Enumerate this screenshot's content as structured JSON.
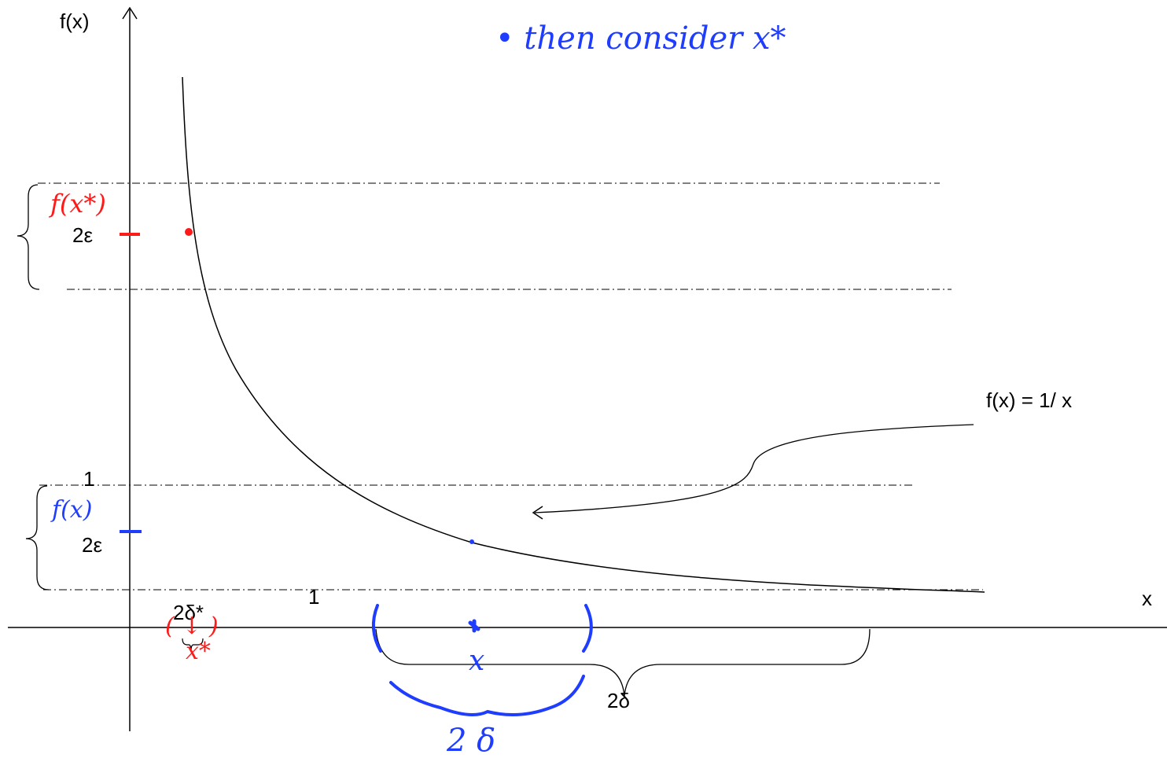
{
  "labels": {
    "y_axis": "f(x)",
    "x_axis": "x",
    "func": "f(x) = 1/ x",
    "one_y": "1",
    "one_x": "1",
    "two_eps_top": "2ε",
    "two_eps_bottom": "2ε",
    "two_delta_star": "2δ*",
    "two_delta_big": "2δ"
  },
  "handwriting": {
    "note": "• then consider x*",
    "f_x_star": "f(x*)",
    "f_x": "f(x)",
    "x_star": "x*",
    "x_mark": "x",
    "two_delta": "2 δ",
    "paren_red": "( ↓ )"
  },
  "colors": {
    "ink": "#000000",
    "red": "#ff1a1a",
    "blue": "#1f3dff"
  }
}
